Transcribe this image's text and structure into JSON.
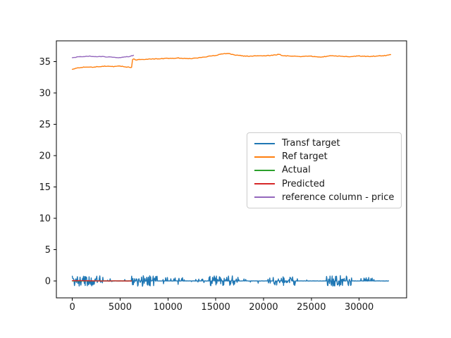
{
  "figure": {
    "background": "#ffffff"
  },
  "chart_data": {
    "type": "line",
    "title": "",
    "xlabel": "",
    "ylabel": "",
    "grid": false,
    "xlim": [
      -1665,
      34965
    ],
    "ylim": [
      -2.7,
      38.3
    ],
    "x_ticks": [
      0,
      5000,
      10000,
      15000,
      20000,
      25000,
      30000
    ],
    "y_ticks": [
      0,
      5,
      10,
      15,
      20,
      25,
      30,
      35
    ],
    "legend": {
      "position": "center-right",
      "entries": [
        "Transf target",
        "Ref target",
        "Actual",
        "Predicted",
        "reference column - price"
      ]
    },
    "series": [
      {
        "name": "Transf target",
        "color": "#1f77b4",
        "kind": "noise",
        "x_start": 0,
        "x_end": 33100,
        "baseline": 0,
        "clusters": [
          {
            "from": 0,
            "to": 3200,
            "amplitude": 0.85,
            "density": 0.6
          },
          {
            "from": 3300,
            "to": 5600,
            "amplitude": 0.35,
            "density": 0.12
          },
          {
            "from": 6200,
            "to": 8900,
            "amplitude": 0.85,
            "density": 0.6
          },
          {
            "from": 9000,
            "to": 12100,
            "amplitude": 0.7,
            "density": 0.22
          },
          {
            "from": 12100,
            "to": 14100,
            "amplitude": 0.3,
            "density": 0.05
          },
          {
            "from": 14300,
            "to": 17500,
            "amplitude": 0.8,
            "density": 0.45
          },
          {
            "from": 17600,
            "to": 19500,
            "amplitude": 0.5,
            "density": 0.15
          },
          {
            "from": 20400,
            "to": 23400,
            "amplitude": 0.75,
            "density": 0.4
          },
          {
            "from": 23500,
            "to": 24800,
            "amplitude": 0.4,
            "density": 0.1
          },
          {
            "from": 26500,
            "to": 29300,
            "amplitude": 0.85,
            "density": 0.55
          },
          {
            "from": 29500,
            "to": 31700,
            "amplitude": 0.55,
            "density": 0.18,
            "up_only": true
          }
        ]
      },
      {
        "name": "Ref target",
        "color": "#ff7f0e",
        "kind": "keypoints",
        "jitter": 0.05,
        "points": [
          [
            0,
            33.8
          ],
          [
            700,
            34.0
          ],
          [
            1400,
            34.15
          ],
          [
            2100,
            34.1
          ],
          [
            2800,
            34.2
          ],
          [
            3500,
            34.25
          ],
          [
            4200,
            34.2
          ],
          [
            5000,
            34.25
          ],
          [
            5600,
            34.15
          ],
          [
            6200,
            34.05
          ],
          [
            6300,
            35.3
          ],
          [
            6400,
            35.45
          ],
          [
            6600,
            35.25
          ],
          [
            7000,
            35.3
          ],
          [
            8000,
            35.4
          ],
          [
            9000,
            35.45
          ],
          [
            10000,
            35.5
          ],
          [
            11000,
            35.55
          ],
          [
            12000,
            35.5
          ],
          [
            12500,
            35.45
          ],
          [
            13000,
            35.55
          ],
          [
            14000,
            35.75
          ],
          [
            15000,
            36.0
          ],
          [
            15800,
            36.25
          ],
          [
            16300,
            36.3
          ],
          [
            17000,
            36.05
          ],
          [
            17800,
            35.9
          ],
          [
            18500,
            35.85
          ],
          [
            19500,
            35.9
          ],
          [
            20500,
            35.95
          ],
          [
            21300,
            36.05
          ],
          [
            21600,
            36.15
          ],
          [
            22000,
            35.95
          ],
          [
            23000,
            35.85
          ],
          [
            24000,
            35.8
          ],
          [
            25000,
            35.85
          ],
          [
            25800,
            35.7
          ],
          [
            26500,
            35.8
          ],
          [
            27200,
            35.95
          ],
          [
            28000,
            35.85
          ],
          [
            29000,
            35.8
          ],
          [
            30000,
            35.9
          ],
          [
            30800,
            35.8
          ],
          [
            31500,
            35.85
          ],
          [
            32300,
            35.9
          ],
          [
            33000,
            36.0
          ],
          [
            33300,
            36.1
          ]
        ]
      },
      {
        "name": "Actual",
        "color": "#2ca02c",
        "kind": "keypoints",
        "jitter": 0.0,
        "points": [
          [
            0,
            0
          ],
          [
            6200,
            0
          ]
        ]
      },
      {
        "name": "Predicted",
        "color": "#d62728",
        "kind": "keypoints",
        "jitter": 0.02,
        "points": [
          [
            0,
            0.05
          ],
          [
            3000,
            0.0
          ],
          [
            6200,
            0.0
          ]
        ]
      },
      {
        "name": "reference column - price",
        "color": "#9467bd",
        "kind": "keypoints",
        "jitter": 0.04,
        "points": [
          [
            0,
            35.6
          ],
          [
            600,
            35.75
          ],
          [
            1200,
            35.8
          ],
          [
            1800,
            35.85
          ],
          [
            2400,
            35.8
          ],
          [
            3000,
            35.8
          ],
          [
            3600,
            35.75
          ],
          [
            4200,
            35.7
          ],
          [
            4700,
            35.6
          ],
          [
            5200,
            35.65
          ],
          [
            5700,
            35.75
          ],
          [
            6100,
            35.85
          ],
          [
            6400,
            36.0
          ]
        ]
      }
    ]
  }
}
